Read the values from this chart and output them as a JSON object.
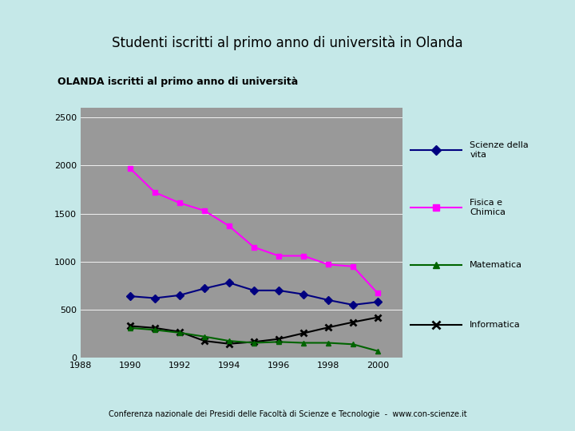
{
  "title": "Studenti iscritti al primo anno di università in Olanda",
  "chart_title": "OLANDA iscritti al primo anno di università",
  "subtitle": "Conferenza nazionale dei Presidi delle Facoltà di Scienze e Tecnologie  -  www.con-scienze.it",
  "background_color": "#c5e8e8",
  "plot_bg_color": "#999999",
  "chart_frame_color": "#f0f0f0",
  "legend_bg_color": "#e8e8e8",
  "years": [
    1990,
    1991,
    1992,
    1993,
    1994,
    1995,
    1996,
    1997,
    1998,
    1999,
    2000
  ],
  "scienze_vita": [
    640,
    620,
    650,
    720,
    780,
    700,
    700,
    660,
    600,
    550,
    580
  ],
  "fisica_chimica": [
    1970,
    1720,
    1610,
    1530,
    1370,
    1150,
    1060,
    1060,
    970,
    950,
    670
  ],
  "matematica": [
    310,
    290,
    260,
    220,
    175,
    155,
    165,
    155,
    155,
    140,
    70
  ],
  "informatica": [
    330,
    310,
    270,
    175,
    145,
    165,
    195,
    255,
    315,
    370,
    420
  ],
  "xlim": [
    1988,
    2001
  ],
  "ylim": [
    0,
    2600
  ],
  "yticks": [
    0,
    500,
    1000,
    1500,
    2000,
    2500
  ],
  "xticks": [
    1988,
    1990,
    1992,
    1994,
    1996,
    1998,
    2000
  ],
  "colors": {
    "scienze_vita": "#000080",
    "fisica_chimica": "#ff00ff",
    "matematica": "#006400",
    "informatica": "#000000"
  },
  "legend_labels": [
    "Scienze della\nvita",
    "Fisica e\nChimica",
    "Matematica",
    "Informatica"
  ]
}
